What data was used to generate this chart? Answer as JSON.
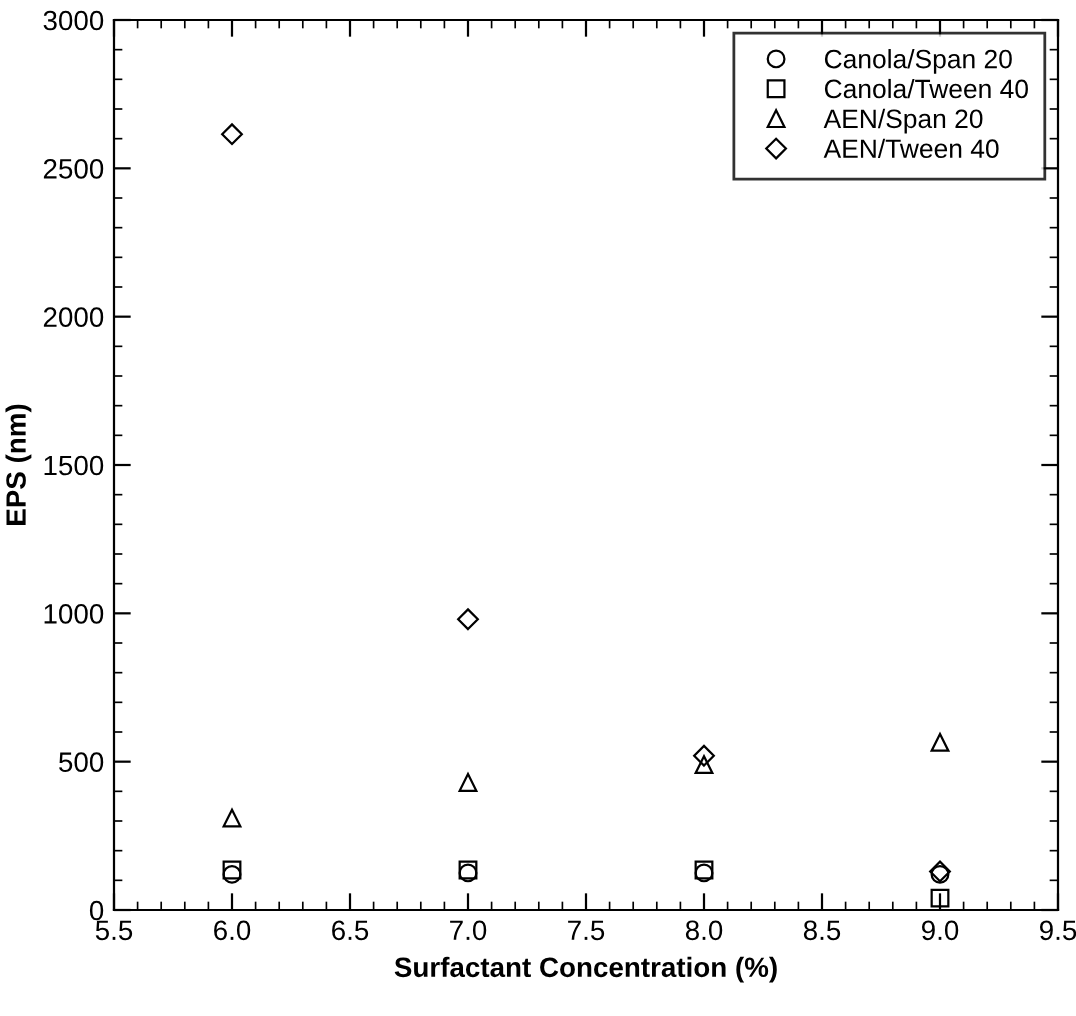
{
  "chart_data": {
    "type": "scatter",
    "xlabel": "Surfactant Concentration (%)",
    "ylabel": "EPS (nm)",
    "x": [
      6.0,
      7.0,
      8.0,
      9.0
    ],
    "series": [
      {
        "name": "Canola/Span 20",
        "color": "#000000",
        "marker": "circle",
        "values": [
          120,
          125,
          125,
          120
        ]
      },
      {
        "name": "Canola/Tween 40",
        "color": "#000000",
        "marker": "square",
        "values": [
          135,
          135,
          135,
          40
        ]
      },
      {
        "name": "AEN/Span 20",
        "color": "#000000",
        "marker": "triangle",
        "values": [
          310,
          430,
          490,
          565
        ]
      },
      {
        "name": "AEN/Tween 40",
        "color": "#000000",
        "marker": "diamond",
        "values": [
          2615,
          980,
          520,
          130
        ]
      }
    ],
    "xlim": [
      5.5,
      9.5
    ],
    "xticks": [
      5.5,
      {
        "value": 6,
        "label": "6.0"
      },
      6.5,
      {
        "value": 7,
        "label": "7.0"
      },
      7.5,
      {
        "value": 8,
        "label": "8.0"
      },
      8.5,
      {
        "value": 9,
        "label": "9.0"
      },
      9.5
    ],
    "ylim": [
      0,
      3000
    ],
    "yticks": [
      0,
      500,
      1000,
      1500,
      2000,
      2500,
      3000
    ],
    "grid": false,
    "legend": "top right"
  }
}
